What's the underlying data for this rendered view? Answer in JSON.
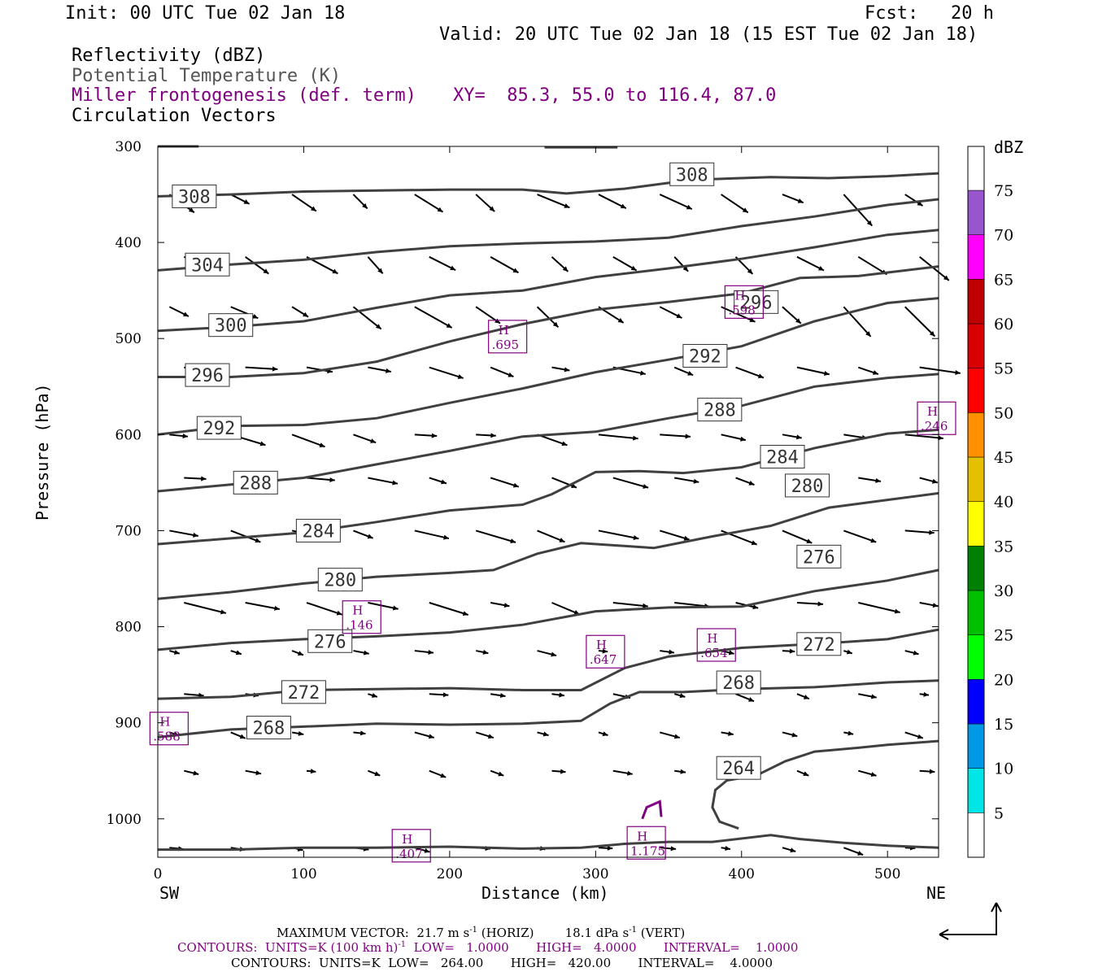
{
  "header": {
    "init": "Init: 00 UTC Tue 02 Jan 18",
    "fcst": "Fcst:   20 h",
    "valid": "Valid: 20 UTC Tue 02 Jan 18 (15 EST Tue 02 Jan 18)",
    "field1": "Reflectivity (dBZ)",
    "field2": "Potential Temperature (K)",
    "field3": "Miller frontogenesis (def. term)",
    "xy": "XY=  85.3, 55.0 to 116.4, 87.0",
    "field4": "Circulation Vectors"
  },
  "colors": {
    "isentrope": "#404040",
    "frontogenesis": "#800080",
    "vector": "#000000"
  },
  "colorbar": {
    "unit": "dBZ",
    "levels": [
      "5",
      "10",
      "15",
      "20",
      "25",
      "30",
      "35",
      "40",
      "45",
      "50",
      "55",
      "60",
      "65",
      "70",
      "75"
    ],
    "colors": [
      "#ffffff",
      "#00e5e5",
      "#0099e5",
      "#0000ff",
      "#00ff00",
      "#00c000",
      "#008000",
      "#ffff00",
      "#e5c000",
      "#ff9000",
      "#ff0000",
      "#d80000",
      "#c00000",
      "#ff00ff",
      "#9955cc",
      "#ffffff"
    ]
  },
  "chart_data": {
    "type": "line",
    "xlabel": "Distance (km)",
    "ylabel": "Pressure (hPa)",
    "xlim": [
      0,
      535
    ],
    "ylim": [
      1040,
      300
    ],
    "x_ticks": [
      "0",
      "100",
      "200",
      "300",
      "400",
      "500"
    ],
    "y_ticks": [
      "300",
      "400",
      "500",
      "600",
      "700",
      "800",
      "900",
      "1000"
    ],
    "left_end": "SW",
    "right_end": "NE",
    "isentropes": [
      {
        "name": "308",
        "label_pos": [
          25,
          352
        ],
        "label_pos2": [
          366,
          329
        ],
        "points": [
          [
            0,
            352
          ],
          [
            50,
            350
          ],
          [
            100,
            347
          ],
          [
            150,
            346
          ],
          [
            200,
            345
          ],
          [
            250,
            345
          ],
          [
            280,
            349
          ],
          [
            320,
            344
          ],
          [
            350,
            338
          ],
          [
            380,
            334
          ],
          [
            420,
            332
          ],
          [
            460,
            333
          ],
          [
            500,
            331
          ],
          [
            535,
            328
          ]
        ]
      },
      {
        "name": "304",
        "label_pos": [
          34,
          423
        ],
        "points": [
          [
            0,
            429
          ],
          [
            50,
            423
          ],
          [
            100,
            418
          ],
          [
            150,
            410
          ],
          [
            200,
            404
          ],
          [
            250,
            401
          ],
          [
            300,
            399
          ],
          [
            350,
            395
          ],
          [
            400,
            383
          ],
          [
            450,
            373
          ],
          [
            500,
            361
          ],
          [
            535,
            355
          ]
        ]
      },
      {
        "name": "300",
        "label_pos": [
          50,
          486
        ],
        "points": [
          [
            0,
            492
          ],
          [
            50,
            488
          ],
          [
            100,
            482
          ],
          [
            150,
            468
          ],
          [
            200,
            455
          ],
          [
            250,
            450
          ],
          [
            300,
            436
          ],
          [
            350,
            427
          ],
          [
            400,
            417
          ],
          [
            450,
            405
          ],
          [
            500,
            392
          ],
          [
            535,
            387
          ]
        ]
      },
      {
        "name": "296",
        "label_pos": [
          34,
          538
        ],
        "label_pos2": [
          410,
          462
        ],
        "points": [
          [
            0,
            540
          ],
          [
            50,
            540
          ],
          [
            100,
            536
          ],
          [
            150,
            524
          ],
          [
            200,
            503
          ],
          [
            250,
            485
          ],
          [
            300,
            470
          ],
          [
            350,
            462
          ],
          [
            400,
            453
          ],
          [
            440,
            437
          ],
          [
            480,
            435
          ],
          [
            535,
            425
          ]
        ]
      },
      {
        "name": "292",
        "label_pos": [
          42,
          593
        ],
        "label_pos2": [
          375,
          518
        ],
        "points": [
          [
            0,
            600
          ],
          [
            50,
            591
          ],
          [
            100,
            590
          ],
          [
            150,
            583
          ],
          [
            200,
            567
          ],
          [
            250,
            552
          ],
          [
            300,
            535
          ],
          [
            350,
            522
          ],
          [
            400,
            508
          ],
          [
            450,
            482
          ],
          [
            500,
            463
          ],
          [
            535,
            458
          ]
        ]
      },
      {
        "name": "288",
        "label_pos": [
          67,
          650
        ],
        "label_pos2": [
          385,
          574
        ],
        "points": [
          [
            0,
            659
          ],
          [
            50,
            652
          ],
          [
            100,
            645
          ],
          [
            150,
            631
          ],
          [
            200,
            617
          ],
          [
            250,
            602
          ],
          [
            300,
            597
          ],
          [
            350,
            583
          ],
          [
            400,
            570
          ],
          [
            450,
            550
          ],
          [
            500,
            541
          ],
          [
            535,
            537
          ]
        ]
      },
      {
        "name": "284",
        "label_pos": [
          110,
          700
        ],
        "label_pos2": [
          428,
          623
        ],
        "points": [
          [
            0,
            714
          ],
          [
            50,
            708
          ],
          [
            100,
            702
          ],
          [
            150,
            691
          ],
          [
            200,
            679
          ],
          [
            250,
            673
          ],
          [
            270,
            662
          ],
          [
            300,
            639
          ],
          [
            330,
            638
          ],
          [
            360,
            640
          ],
          [
            400,
            634
          ],
          [
            450,
            614
          ],
          [
            500,
            599
          ],
          [
            535,
            595
          ]
        ]
      },
      {
        "name": "280",
        "label_pos": [
          125,
          751
        ],
        "label_pos2": [
          445,
          653
        ],
        "points": [
          [
            0,
            771
          ],
          [
            50,
            764
          ],
          [
            100,
            755
          ],
          [
            150,
            748
          ],
          [
            200,
            744
          ],
          [
            230,
            741
          ],
          [
            260,
            724
          ],
          [
            290,
            713
          ],
          [
            340,
            718
          ],
          [
            380,
            706
          ],
          [
            420,
            695
          ],
          [
            460,
            676
          ],
          [
            500,
            668
          ],
          [
            535,
            661
          ]
        ]
      },
      {
        "name": "276",
        "label_pos": [
          118,
          815
        ],
        "label_pos2": [
          453,
          727
        ],
        "points": [
          [
            0,
            824
          ],
          [
            50,
            817
          ],
          [
            100,
            813
          ],
          [
            150,
            810
          ],
          [
            200,
            806
          ],
          [
            250,
            798
          ],
          [
            300,
            784
          ],
          [
            350,
            780
          ],
          [
            400,
            779
          ],
          [
            450,
            763
          ],
          [
            500,
            752
          ],
          [
            535,
            741
          ]
        ]
      },
      {
        "name": "272",
        "label_pos": [
          100,
          868
        ],
        "label_pos2": [
          453,
          818
        ],
        "points": [
          [
            0,
            875
          ],
          [
            50,
            873
          ],
          [
            100,
            866
          ],
          [
            150,
            865
          ],
          [
            200,
            864
          ],
          [
            250,
            866
          ],
          [
            290,
            866
          ],
          [
            320,
            843
          ],
          [
            350,
            831
          ],
          [
            400,
            822
          ],
          [
            450,
            818
          ],
          [
            500,
            813
          ],
          [
            535,
            803
          ]
        ]
      },
      {
        "name": "268",
        "label_pos": [
          76,
          905
        ],
        "label_pos2": [
          398,
          858
        ],
        "points": [
          [
            0,
            915
          ],
          [
            50,
            907
          ],
          [
            100,
            904
          ],
          [
            150,
            901
          ],
          [
            200,
            902
          ],
          [
            250,
            901
          ],
          [
            290,
            898
          ],
          [
            310,
            880
          ],
          [
            330,
            868
          ],
          [
            360,
            868
          ],
          [
            400,
            865
          ],
          [
            450,
            863
          ],
          [
            500,
            858
          ],
          [
            535,
            856
          ]
        ]
      },
      {
        "name": "264",
        "label_pos": [
          398,
          947
        ],
        "points": [
          [
            0,
            1032
          ],
          [
            50,
            1032
          ],
          [
            100,
            1030
          ],
          [
            150,
            1030
          ],
          [
            200,
            1029
          ],
          [
            250,
            1031
          ],
          [
            290,
            1030
          ],
          [
            320,
            1026
          ],
          [
            350,
            1024
          ],
          [
            380,
            1024
          ],
          [
            420,
            1017
          ],
          [
            440,
            1021
          ],
          [
            470,
            1025
          ],
          [
            500,
            1028
          ],
          [
            535,
            1030
          ]
        ]
      }
    ],
    "isentrope_264_branch": [
      [
        398,
        1010
      ],
      [
        385,
        1003
      ],
      [
        380,
        988
      ],
      [
        382,
        970
      ],
      [
        390,
        960
      ],
      [
        410,
        955
      ],
      [
        430,
        940
      ],
      [
        450,
        930
      ],
      [
        480,
        926
      ],
      [
        500,
        923
      ],
      [
        535,
        919
      ]
    ],
    "frontogenesis_maxima": [
      {
        "label": "H",
        "value": ".695",
        "x": 240,
        "p": 498
      },
      {
        "label": "H",
        "value": ".598",
        "x": 402,
        "p": 462
      },
      {
        "label": "H",
        "value": ".246",
        "x": 537,
        "p": 583
      },
      {
        "label": "H",
        "value": ".146",
        "x": 140,
        "p": 790
      },
      {
        "label": "H",
        "value": ".647",
        "x": 307,
        "p": 826
      },
      {
        "label": "H",
        "value": ".654",
        "x": 383,
        "p": 819
      },
      {
        "label": "H",
        "value": ".588",
        "x": 8,
        "p": 906
      },
      {
        "label": "H",
        "value": ".407",
        "x": 174,
        "p": 1028
      },
      {
        "label": "H",
        "value": "1.175",
        "x": 335,
        "p": 1025
      }
    ],
    "vectors_note": "circulation vectors, rightward with downward tilt aloft"
  },
  "footer": {
    "max_vector": "MAXIMUM VECTOR:  21.7 m s",
    "max_vector_unit1": "-1",
    "max_vector_horiz": " (HORIZ)        18.1 dPa s",
    "max_vector_unit2": "-1",
    "max_vector_vert": " (VERT)",
    "contours1": "CONTOURS:  UNITS=K (100 km h)",
    "contours1_sup": "-1",
    "contours1_rest": "  LOW=   1.0000       HIGH=   4.0000       INTERVAL=    1.0000",
    "contours2": "CONTOURS:  UNITS=K  LOW=   264.00       HIGH=   420.00       INTERVAL=    4.0000"
  }
}
